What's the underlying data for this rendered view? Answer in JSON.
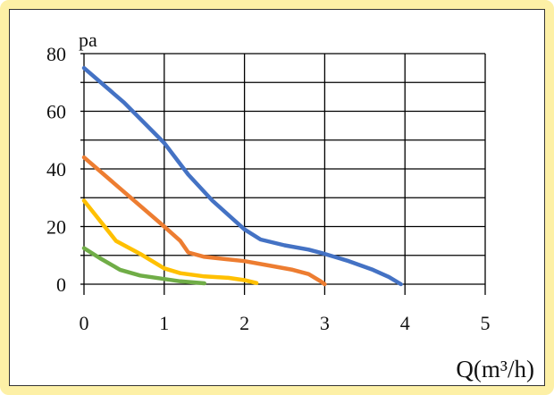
{
  "chart_data": {
    "type": "line",
    "y_unit": "pa",
    "x_unit": "Q(m³/h)",
    "xlim": [
      0,
      5
    ],
    "ylim": [
      0,
      80
    ],
    "x_ticks": [
      0,
      1,
      2,
      3,
      4,
      5
    ],
    "y_ticks": [
      0,
      20,
      40,
      60,
      80
    ],
    "y_gridlines": [
      0,
      10,
      20,
      30,
      40,
      50,
      60,
      70,
      80
    ],
    "x_gridlines": [
      0,
      1,
      2,
      3,
      4,
      5
    ],
    "grid": true,
    "legend": "none",
    "series": [
      {
        "color": "#4472c4",
        "points": [
          [
            0,
            75
          ],
          [
            0.5,
            63
          ],
          [
            1.0,
            49
          ],
          [
            1.3,
            38
          ],
          [
            1.6,
            29
          ],
          [
            2.0,
            19
          ],
          [
            2.2,
            15.5
          ],
          [
            2.5,
            13.5
          ],
          [
            2.8,
            12
          ],
          [
            3.0,
            10.5
          ],
          [
            3.3,
            8
          ],
          [
            3.6,
            5
          ],
          [
            3.8,
            2.5
          ],
          [
            3.95,
            0
          ]
        ]
      },
      {
        "color": "#ed7d31",
        "points": [
          [
            0,
            44
          ],
          [
            0.5,
            32
          ],
          [
            1.0,
            20
          ],
          [
            1.2,
            15
          ],
          [
            1.3,
            11
          ],
          [
            1.5,
            9.5
          ],
          [
            2.0,
            8
          ],
          [
            2.3,
            6.5
          ],
          [
            2.6,
            5
          ],
          [
            2.8,
            3.5
          ],
          [
            2.95,
            1
          ],
          [
            3.0,
            0
          ]
        ]
      },
      {
        "color": "#ffc000",
        "points": [
          [
            0,
            29
          ],
          [
            0.2,
            22
          ],
          [
            0.4,
            15
          ],
          [
            0.7,
            10.5
          ],
          [
            1.0,
            5.5
          ],
          [
            1.2,
            3.8
          ],
          [
            1.5,
            2.7
          ],
          [
            1.8,
            2.2
          ],
          [
            2.0,
            1.4
          ],
          [
            2.15,
            0.4
          ]
        ]
      },
      {
        "color": "#70ad47",
        "points": [
          [
            0,
            12.5
          ],
          [
            0.2,
            9
          ],
          [
            0.45,
            5
          ],
          [
            0.7,
            3
          ],
          [
            1.0,
            1.8
          ],
          [
            1.2,
            1
          ],
          [
            1.5,
            0.3
          ]
        ]
      }
    ]
  }
}
